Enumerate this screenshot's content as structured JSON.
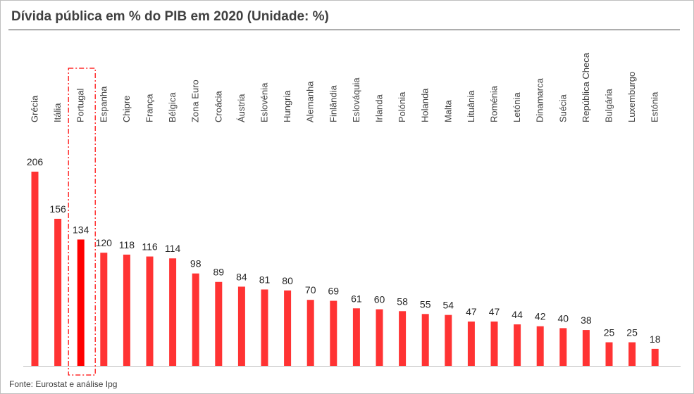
{
  "title": "Dívida pública em % do PIB em 2020 (Unidade: %)",
  "source": "Fonte: Eurostat e análise Ipg",
  "chart_data": {
    "type": "bar",
    "title": "Dívida pública em % do PIB em 2020 (Unidade: %)",
    "xlabel": "",
    "ylabel": "",
    "ylim": [
      0,
      210
    ],
    "grid": false,
    "bar_color": "#ff3333",
    "highlight_color": "#ff0000",
    "highlight_category": "Portugal",
    "categories": [
      "Grécia",
      "Itália",
      "Portugal",
      "Espanha",
      "Chipre",
      "França",
      "Bélgica",
      "Zona Euro",
      "Croácia",
      "Áustria",
      "Eslovénia",
      "Hungria",
      "Alemanha",
      "Finlândia",
      "Eslováquia",
      "Irlanda",
      "Polónia",
      "Holanda",
      "Malta",
      "Lituânia",
      "Roménia",
      "Letónia",
      "Dinamarca",
      "Suécia",
      "República Checa",
      "Bulgária",
      "Luxemburgo",
      "Estónia"
    ],
    "values": [
      206,
      156,
      134,
      120,
      118,
      116,
      114,
      98,
      89,
      84,
      81,
      80,
      70,
      69,
      61,
      60,
      58,
      55,
      54,
      47,
      47,
      44,
      42,
      40,
      38,
      25,
      25,
      18
    ]
  }
}
